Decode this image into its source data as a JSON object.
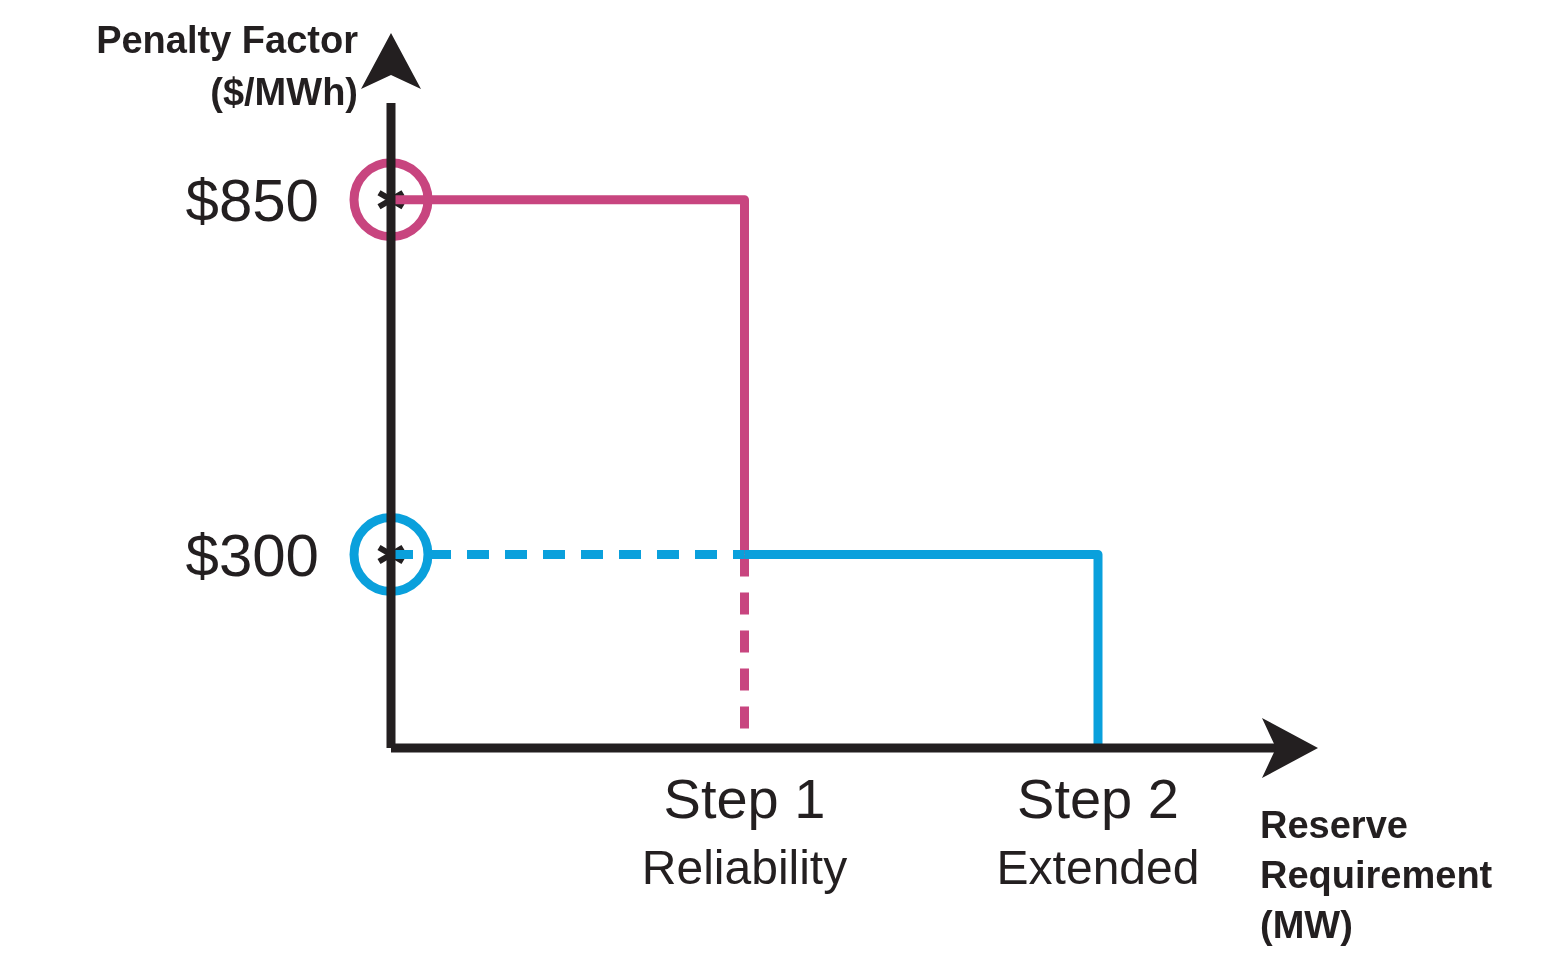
{
  "chart_data": {
    "type": "step",
    "ylabel": "Penalty Factor\n($/MWh)",
    "xlabel": "Reserve\nRequirement\n(MW)",
    "categories": [
      null,
      "Step 1\nReliability",
      "Step 2\nExtended"
    ],
    "ylim": [
      0,
      1000
    ],
    "yticks": [
      {
        "value": 850,
        "label": "$850"
      },
      {
        "value": 300,
        "label": "$300"
      }
    ],
    "grid": false,
    "series": [
      {
        "color": "#c8457f",
        "values": [
          850,
          300,
          null
        ]
      },
      {
        "type": "line",
        "color": "#c8457f",
        "x": [
          "Step 1\nReliability",
          "Step 1\nReliability"
        ],
        "values": [
          300,
          0
        ],
        "line_style": "dashed"
      },
      {
        "type": "line",
        "color": "#0aa0dc",
        "values": [
          300,
          300,
          null
        ],
        "line_style": "dashed"
      },
      {
        "color": "#0aa0dc",
        "values": [
          null,
          300,
          0
        ]
      }
    ]
  }
}
